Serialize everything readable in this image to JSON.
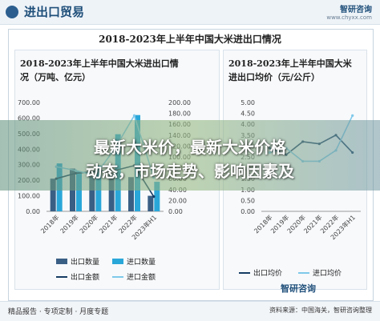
{
  "header": {
    "title": "进出口贸易",
    "logo": "智研咨询",
    "site": "www.chyxx.com"
  },
  "main_title": "2018-2023年上半年中国大米进出口情况",
  "banner": {
    "line1": "最新大米价，最新大米价格",
    "line2": "动态，市场走势、影响因素及"
  },
  "watermark": "智研咨询",
  "footer": {
    "left": "精品报告 · 专项定制 · 月度专题",
    "right": "资料来源：中国海关，智研咨询整理"
  },
  "colors": {
    "import_qty": "#3a5f85",
    "export_qty": "#2aa7d9",
    "accent": "#1f4f7a"
  },
  "chart_data": [
    {
      "type": "bar",
      "title": "2018-2023年上半年中国大米进出口情况（万吨、亿元）",
      "categories": [
        "2018年",
        "2019年",
        "2020年",
        "2021年",
        "2022年",
        "2023年H1"
      ],
      "y_left_ticks": [
        "0.00",
        "100.00",
        "200.00",
        "300.00",
        "400.00",
        "500.00",
        "600.00",
        "700.00"
      ],
      "y_right_ticks": [
        "0.00",
        "20.00",
        "40.00",
        "60.00",
        "80.00",
        "100.00",
        "120.00",
        "140.00",
        "160.00",
        "180.00",
        "200.00"
      ],
      "ylim_left": [
        0,
        700
      ],
      "ylim_right": [
        0,
        200
      ],
      "series": [
        {
          "name": "出口数量",
          "type": "bar",
          "axis": "left",
          "values": [
            210,
            275,
            225,
            245,
            220,
            100
          ]
        },
        {
          "name": "进口数量",
          "type": "bar",
          "axis": "left",
          "values": [
            308,
            255,
            294,
            496,
            619,
            190
          ]
        },
        {
          "name": "出口金额",
          "type": "line",
          "axis": "right",
          "values": [
            60,
            70,
            73,
            75,
            84,
            27
          ]
        },
        {
          "name": "进口金额",
          "type": "line",
          "axis": "right",
          "values": [
            82,
            75,
            66,
            115,
            176,
            62
          ]
        }
      ],
      "legend_position": "bottom",
      "grid": false
    },
    {
      "type": "line",
      "title": "2018-2023年上半年中国大米进出口均价（元/公斤）",
      "categories": [
        "2018年",
        "2019年",
        "2020年",
        "2021年",
        "2022年",
        "2023年H1"
      ],
      "y_ticks": [
        "0.00",
        "0.50",
        "1.00",
        "1.50",
        "2.00",
        "2.50",
        "3.00",
        "3.50",
        "4.00",
        "4.50",
        "5.00"
      ],
      "ylim": [
        0,
        5
      ],
      "series": [
        {
          "name": "出口均价",
          "values": [
            2.9,
            2.6,
            3.2,
            3.1,
            3.5,
            2.7
          ]
        },
        {
          "name": "进口均价",
          "values": [
            2.7,
            2.9,
            2.3,
            2.3,
            2.8,
            4.4
          ]
        }
      ],
      "legend_position": "bottom",
      "grid": false
    }
  ]
}
